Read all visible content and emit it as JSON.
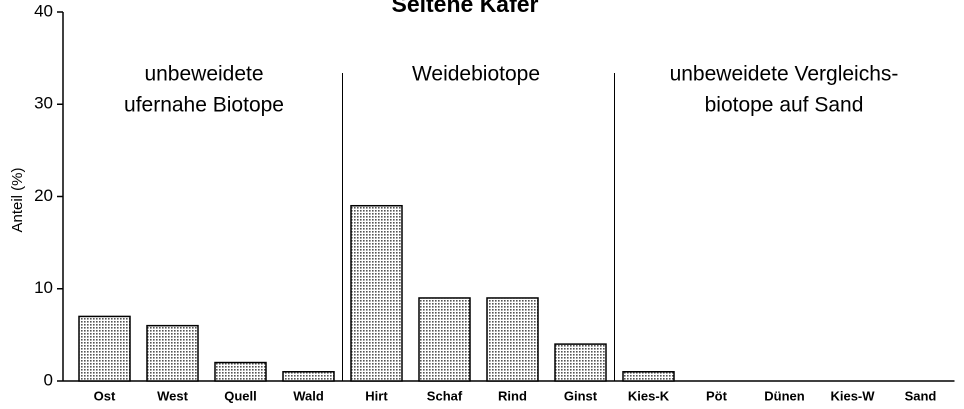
{
  "chart_data": {
    "type": "bar",
    "title": "Seltene Käfer",
    "ylabel": "Anteil (%)",
    "categories": [
      "Ost",
      "West",
      "Quell",
      "Wald",
      "Hirt",
      "Schaf",
      "Rind",
      "Ginst",
      "Kies-K",
      "Pöt",
      "Dünen",
      "Kies-W",
      "Sand"
    ],
    "values": [
      7,
      6,
      2,
      1,
      19,
      9,
      9,
      4,
      1,
      0,
      0,
      0,
      0
    ],
    "color": "#d8d8d8",
    "ylim": [
      0,
      40
    ],
    "yticks": [
      0,
      10,
      20,
      30,
      40
    ],
    "grid": false,
    "annotations": [
      [
        "unbeweidete",
        "ufernahe Biotope"
      ],
      [
        "Weidebiotope"
      ],
      [
        "unbeweidete Vergleichs-",
        "biotope auf Sand"
      ]
    ]
  }
}
